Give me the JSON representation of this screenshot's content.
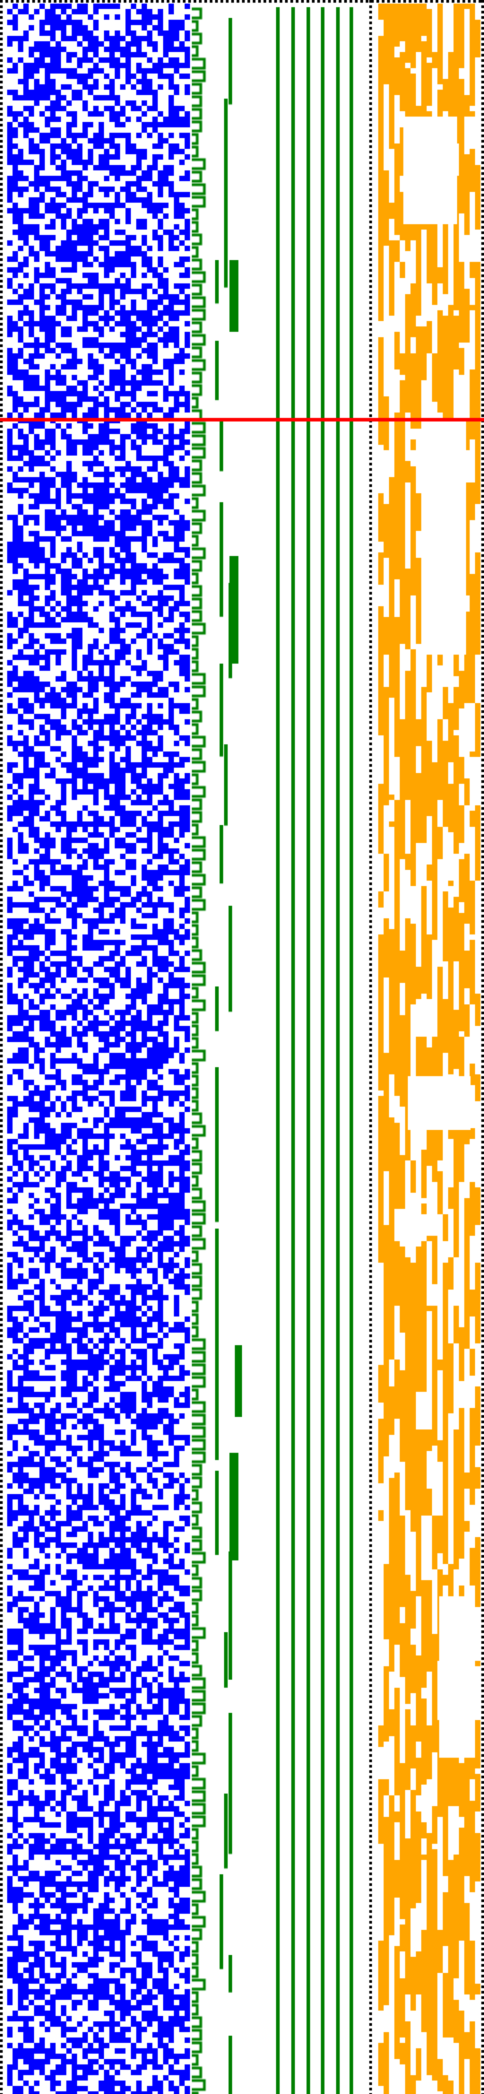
{
  "colors": {
    "background": "#ffffff",
    "random_cells": "#0000ff",
    "tree_lines": "#008000",
    "frame_dotted": "#000000",
    "right_panel_cells": "#ffa500",
    "marker_line": "#ff0000"
  },
  "panels": [
    {
      "name": "random-cell-grid",
      "kind": "dense blue pixel field"
    },
    {
      "name": "branching-tree",
      "kind": "green nested bracket/branch diagram"
    },
    {
      "name": "vertical-bars",
      "kind": "green parallel vertical lines"
    },
    {
      "name": "orange-cell-grid",
      "kind": "orange pixel field with vertical runs"
    }
  ],
  "frame": {
    "style": "dotted",
    "sides": [
      "top",
      "left",
      "middle-divider",
      "right"
    ]
  },
  "marker": {
    "orientation": "horizontal",
    "color_name": "red"
  }
}
